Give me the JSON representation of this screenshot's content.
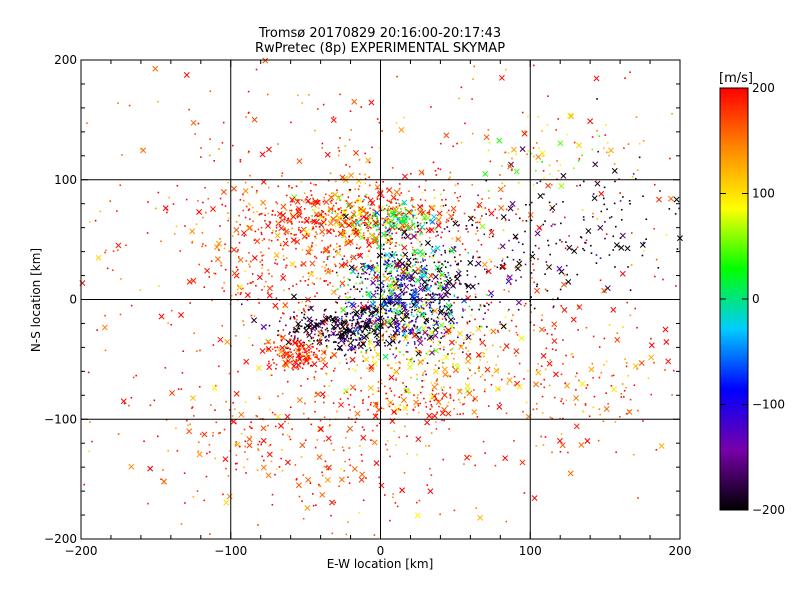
{
  "chart_data": {
    "type": "scatter",
    "title": "Tromsø 20170829 20:16:00-20:17:43",
    "subtitle": "RwPretec (8p) EXPERIMENTAL SKYMAP",
    "xlabel": "E-W location [km]",
    "ylabel": "N-S location [km]",
    "xlim": [
      -200,
      200
    ],
    "ylim": [
      -200,
      200
    ],
    "x_ticks": [
      -200,
      -100,
      0,
      100,
      200
    ],
    "y_ticks": [
      -200,
      -100,
      0,
      100,
      200
    ],
    "grid": true,
    "markers": [
      "dot",
      "x"
    ],
    "colorbar": {
      "label": "[m/s]",
      "min": -200,
      "max": 200,
      "ticks": [
        200,
        100,
        0,
        -100,
        -200
      ],
      "colormap": "rainbow",
      "stops": [
        "#000000",
        "#7700aa",
        "#0000ff",
        "#00ccff",
        "#00ff00",
        "#ffff00",
        "#ff8800",
        "#ff0000"
      ]
    },
    "clusters": [
      {
        "x": -10,
        "y": 70,
        "sx": 45,
        "sy": 12,
        "v": 180,
        "n": 450
      },
      {
        "x": 10,
        "y": 65,
        "sx": 10,
        "sy": 8,
        "v": 10,
        "n": 120
      },
      {
        "x": -20,
        "y": 70,
        "sx": 15,
        "sy": 8,
        "v": 70,
        "n": 80
      },
      {
        "x": -50,
        "y": 40,
        "sx": 35,
        "sy": 30,
        "v": 190,
        "n": 350
      },
      {
        "x": -25,
        "y": -25,
        "sx": 20,
        "sy": 10,
        "v": -200,
        "n": 350
      },
      {
        "x": -55,
        "y": -45,
        "sx": 10,
        "sy": 7,
        "v": 195,
        "n": 200
      },
      {
        "x": 20,
        "y": 0,
        "sx": 22,
        "sy": 25,
        "v": -180,
        "n": 400
      },
      {
        "x": 15,
        "y": 15,
        "sx": 20,
        "sy": 20,
        "v": 20,
        "n": 200
      },
      {
        "x": 15,
        "y": -5,
        "sx": 18,
        "sy": 18,
        "v": -80,
        "n": 150
      },
      {
        "x": 25,
        "y": -50,
        "sx": 30,
        "sy": 20,
        "v": 110,
        "n": 200
      },
      {
        "x": 20,
        "y": -85,
        "sx": 25,
        "sy": 8,
        "v": 195,
        "n": 100
      },
      {
        "x": 60,
        "y": 30,
        "sx": 40,
        "sy": 25,
        "v": -200,
        "n": 150
      },
      {
        "x": 130,
        "y": 60,
        "sx": 40,
        "sy": 30,
        "v": -200,
        "n": 120
      },
      {
        "x": 110,
        "y": 120,
        "sx": 25,
        "sy": 15,
        "v": 95,
        "n": 60
      },
      {
        "x": 130,
        "y": -65,
        "sx": 30,
        "sy": 25,
        "v": 170,
        "n": 120
      },
      {
        "x": -60,
        "y": -120,
        "sx": 45,
        "sy": 30,
        "v": 180,
        "n": 180
      },
      {
        "x": 0,
        "y": 0,
        "sx": 110,
        "sy": 110,
        "v": 175,
        "n": 900
      }
    ]
  }
}
